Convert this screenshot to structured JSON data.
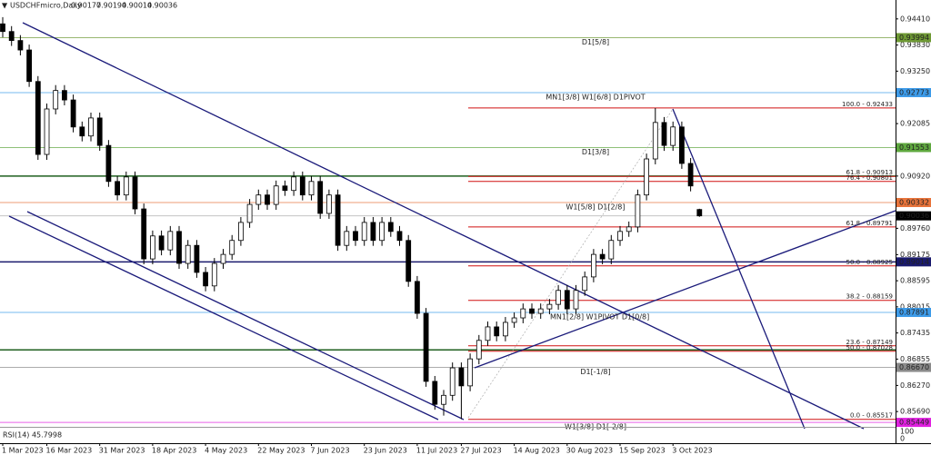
{
  "chart_data": {
    "type": "candlestick",
    "title": "USDCHFmicro,Daily",
    "ylim": [
      0.8535,
      0.9483
    ],
    "yticks": [
      {
        "value": 0.9441,
        "label": "0.94410"
      },
      {
        "value": 0.9383,
        "label": "0.93830"
      },
      {
        "value": 0.9325,
        "label": "0.93250"
      },
      {
        "value": 0.92085,
        "label": "0.92085"
      },
      {
        "value": 0.9092,
        "label": "0.90920"
      },
      {
        "value": 0.8976,
        "label": "0.89760"
      },
      {
        "value": 0.89175,
        "label": "0.89175"
      },
      {
        "value": 0.88595,
        "label": "0.88595"
      },
      {
        "value": 0.88015,
        "label": "0.88015"
      },
      {
        "value": 0.87435,
        "label": "0.87435"
      },
      {
        "value": 0.86855,
        "label": "0.86855"
      },
      {
        "value": 0.8627,
        "label": "0.86270"
      },
      {
        "value": 0.8569,
        "label": "0.85690"
      }
    ],
    "xticks": [
      {
        "value": 0,
        "label": "1 Mar 2023"
      },
      {
        "value": 5,
        "label": "16 Mar 2023"
      },
      {
        "value": 11,
        "label": "31 Mar 2023"
      },
      {
        "value": 17,
        "label": "18 Apr 2023"
      },
      {
        "value": 23,
        "label": "4 May 2023"
      },
      {
        "value": 29,
        "label": "22 May 2023"
      },
      {
        "value": 35,
        "label": "7 Jun 2023"
      },
      {
        "value": 41,
        "label": "23 Jun 2023"
      },
      {
        "value": 47,
        "label": "11 Jul 2023"
      },
      {
        "value": 52,
        "label": "27 Jul 2023"
      },
      {
        "value": 58,
        "label": "14 Aug 2023"
      },
      {
        "value": 64,
        "label": "30 Aug 2023"
      },
      {
        "value": 70,
        "label": "15 Sep 2023"
      },
      {
        "value": 76,
        "label": "3 Oct 2023"
      }
    ],
    "up_color": "#ffffff",
    "down_color": "#000000",
    "candles": [
      [
        0.943,
        0.9445,
        0.94,
        0.9413
      ],
      [
        0.9413,
        0.9425,
        0.9381,
        0.9393
      ],
      [
        0.9393,
        0.9405,
        0.936,
        0.9372
      ],
      [
        0.9372,
        0.9384,
        0.929,
        0.9302
      ],
      [
        0.9302,
        0.9314,
        0.9128,
        0.914
      ],
      [
        0.914,
        0.9253,
        0.9128,
        0.9241
      ],
      [
        0.9241,
        0.9294,
        0.9229,
        0.9282
      ],
      [
        0.9282,
        0.9294,
        0.9249,
        0.9261
      ],
      [
        0.9261,
        0.9273,
        0.9189,
        0.9201
      ],
      [
        0.9201,
        0.9213,
        0.9169,
        0.9181
      ],
      [
        0.9181,
        0.9233,
        0.9169,
        0.9221
      ],
      [
        0.9221,
        0.9233,
        0.9148,
        0.916
      ],
      [
        0.916,
        0.9172,
        0.9068,
        0.908
      ],
      [
        0.908,
        0.9092,
        0.9038,
        0.905
      ],
      [
        0.905,
        0.9102,
        0.9038,
        0.909
      ],
      [
        0.909,
        0.9102,
        0.9007,
        0.9019
      ],
      [
        0.9019,
        0.9031,
        0.8896,
        0.8908
      ],
      [
        0.8908,
        0.8971,
        0.8896,
        0.8959
      ],
      [
        0.8959,
        0.8971,
        0.8916,
        0.8928
      ],
      [
        0.8928,
        0.8981,
        0.8916,
        0.8969
      ],
      [
        0.8969,
        0.8981,
        0.8886,
        0.8898
      ],
      [
        0.8898,
        0.895,
        0.8886,
        0.8938
      ],
      [
        0.8938,
        0.895,
        0.8866,
        0.8878
      ],
      [
        0.8878,
        0.889,
        0.8836,
        0.8848
      ],
      [
        0.8848,
        0.891,
        0.8836,
        0.8898
      ],
      [
        0.8898,
        0.893,
        0.8886,
        0.8918
      ],
      [
        0.8918,
        0.8961,
        0.8906,
        0.8949
      ],
      [
        0.8949,
        0.9001,
        0.8937,
        0.8989
      ],
      [
        0.8989,
        0.9041,
        0.8977,
        0.9029
      ],
      [
        0.9029,
        0.9062,
        0.9017,
        0.905
      ],
      [
        0.905,
        0.9062,
        0.9017,
        0.9029
      ],
      [
        0.9029,
        0.9082,
        0.9017,
        0.907
      ],
      [
        0.907,
        0.9082,
        0.9048,
        0.906
      ],
      [
        0.906,
        0.9102,
        0.9048,
        0.909
      ],
      [
        0.909,
        0.9102,
        0.9038,
        0.905
      ],
      [
        0.905,
        0.9092,
        0.9038,
        0.908
      ],
      [
        0.908,
        0.9092,
        0.8997,
        0.9009
      ],
      [
        0.9009,
        0.9062,
        0.8997,
        0.905
      ],
      [
        0.905,
        0.9062,
        0.8926,
        0.8938
      ],
      [
        0.8938,
        0.8981,
        0.8926,
        0.8969
      ],
      [
        0.8969,
        0.8981,
        0.8937,
        0.8949
      ],
      [
        0.8949,
        0.9001,
        0.8937,
        0.8989
      ],
      [
        0.8989,
        0.9001,
        0.8937,
        0.8949
      ],
      [
        0.8949,
        0.9001,
        0.8937,
        0.8989
      ],
      [
        0.8989,
        0.9001,
        0.8957,
        0.8969
      ],
      [
        0.8969,
        0.8981,
        0.8937,
        0.8949
      ],
      [
        0.8949,
        0.8961,
        0.8846,
        0.8858
      ],
      [
        0.8858,
        0.887,
        0.8775,
        0.8787
      ],
      [
        0.8787,
        0.8799,
        0.8624,
        0.8636
      ],
      [
        0.8636,
        0.8648,
        0.8573,
        0.8585
      ],
      [
        0.8585,
        0.8617,
        0.856,
        0.8605
      ],
      [
        0.8605,
        0.8678,
        0.8593,
        0.8666
      ],
      [
        0.8666,
        0.8678,
        0.8552,
        0.8626
      ],
      [
        0.8626,
        0.8698,
        0.8614,
        0.8686
      ],
      [
        0.8686,
        0.8739,
        0.8674,
        0.8727
      ],
      [
        0.8727,
        0.8769,
        0.8715,
        0.8757
      ],
      [
        0.8757,
        0.8769,
        0.8725,
        0.8737
      ],
      [
        0.8737,
        0.8779,
        0.8725,
        0.8767
      ],
      [
        0.8767,
        0.8789,
        0.8755,
        0.8777
      ],
      [
        0.8777,
        0.8809,
        0.8765,
        0.8797
      ],
      [
        0.8797,
        0.8809,
        0.8775,
        0.8787
      ],
      [
        0.8787,
        0.8809,
        0.8775,
        0.8797
      ],
      [
        0.8797,
        0.8819,
        0.8785,
        0.8807
      ],
      [
        0.8807,
        0.885,
        0.8795,
        0.8838
      ],
      [
        0.8838,
        0.885,
        0.8785,
        0.8797
      ],
      [
        0.8797,
        0.885,
        0.8785,
        0.8838
      ],
      [
        0.8838,
        0.888,
        0.8826,
        0.8868
      ],
      [
        0.8868,
        0.893,
        0.8856,
        0.8918
      ],
      [
        0.8918,
        0.893,
        0.8896,
        0.8908
      ],
      [
        0.8908,
        0.8961,
        0.8896,
        0.8949
      ],
      [
        0.8949,
        0.8981,
        0.8937,
        0.8969
      ],
      [
        0.8969,
        0.8991,
        0.8957,
        0.8979
      ],
      [
        0.8979,
        0.9062,
        0.8967,
        0.905
      ],
      [
        0.905,
        0.9142,
        0.9038,
        0.913
      ],
      [
        0.913,
        0.9243,
        0.9118,
        0.9211
      ],
      [
        0.9211,
        0.9223,
        0.9148,
        0.916
      ],
      [
        0.916,
        0.9213,
        0.9148,
        0.9201
      ],
      [
        0.9201,
        0.9213,
        0.9108,
        0.912
      ],
      [
        0.912,
        0.9132,
        0.9058,
        0.907
      ],
      [
        0.90177,
        0.90194,
        0.90014,
        0.90036
      ]
    ],
    "levels": [
      {
        "label": "D1[5/8]",
        "value": 0.93994,
        "price_label": "0.93994",
        "color": "#6f9a35"
      },
      {
        "label": "MN1[3/8] W1[6/8] D1PIVOT",
        "value": 0.92773,
        "price_label": "0.92773",
        "color": "#3d9be9"
      },
      {
        "label": "D1[3/8]",
        "value": 0.91553,
        "price_label": "0.91553",
        "color": "#5fa83f"
      },
      {
        "value": 0.9092,
        "color": "#1f5f1f"
      },
      {
        "label": "W1[5/8] D1[2/8]",
        "value": 0.90332,
        "price_label": "0.90332",
        "color": "#e8743b"
      },
      {
        "value": 0.89014,
        "price_label": "0.89014",
        "color": "#1a1a6e"
      },
      {
        "label": "MN1[2/8] W1PIVOT D1[0/8]",
        "value": 0.87891,
        "price_label": "0.87891",
        "color": "#3d9be9"
      },
      {
        "value": 0.8706,
        "color": "#1f5f1f"
      },
      {
        "label": "D1[-1/8]",
        "value": 0.8667,
        "price_label": "0.86670",
        "color": "#8a8a8a"
      },
      {
        "label": "W1[3/8] D1[-2/8]",
        "value": 0.85449,
        "price_label": "0.85449",
        "color": "#e020e0"
      }
    ],
    "fib_color": "#d01010",
    "fibs": [
      {
        "value": 0.92433,
        "label": "100.0 - 0.92433"
      },
      {
        "value": 0.90913,
        "label": "61.8 - 0.90913"
      },
      {
        "value": 0.90801,
        "label": "76.4 - 0.90801"
      },
      {
        "value": 0.89791,
        "label": "61.8 - 0.89791"
      },
      {
        "value": 0.88925,
        "label": "50.0 - 0.88925"
      },
      {
        "value": 0.88159,
        "label": "38.2 - 0.88159"
      },
      {
        "value": 0.87149,
        "label": "23.6 - 0.87149"
      },
      {
        "value": 0.87028,
        "label": "50.0 - 0.87028"
      },
      {
        "value": 0.85517,
        "label": "0.0 - 0.85517"
      }
    ],
    "rsi": {
      "title": "RSI(14) 45.7998",
      "yticks": [
        100,
        0
      ]
    }
  }
}
